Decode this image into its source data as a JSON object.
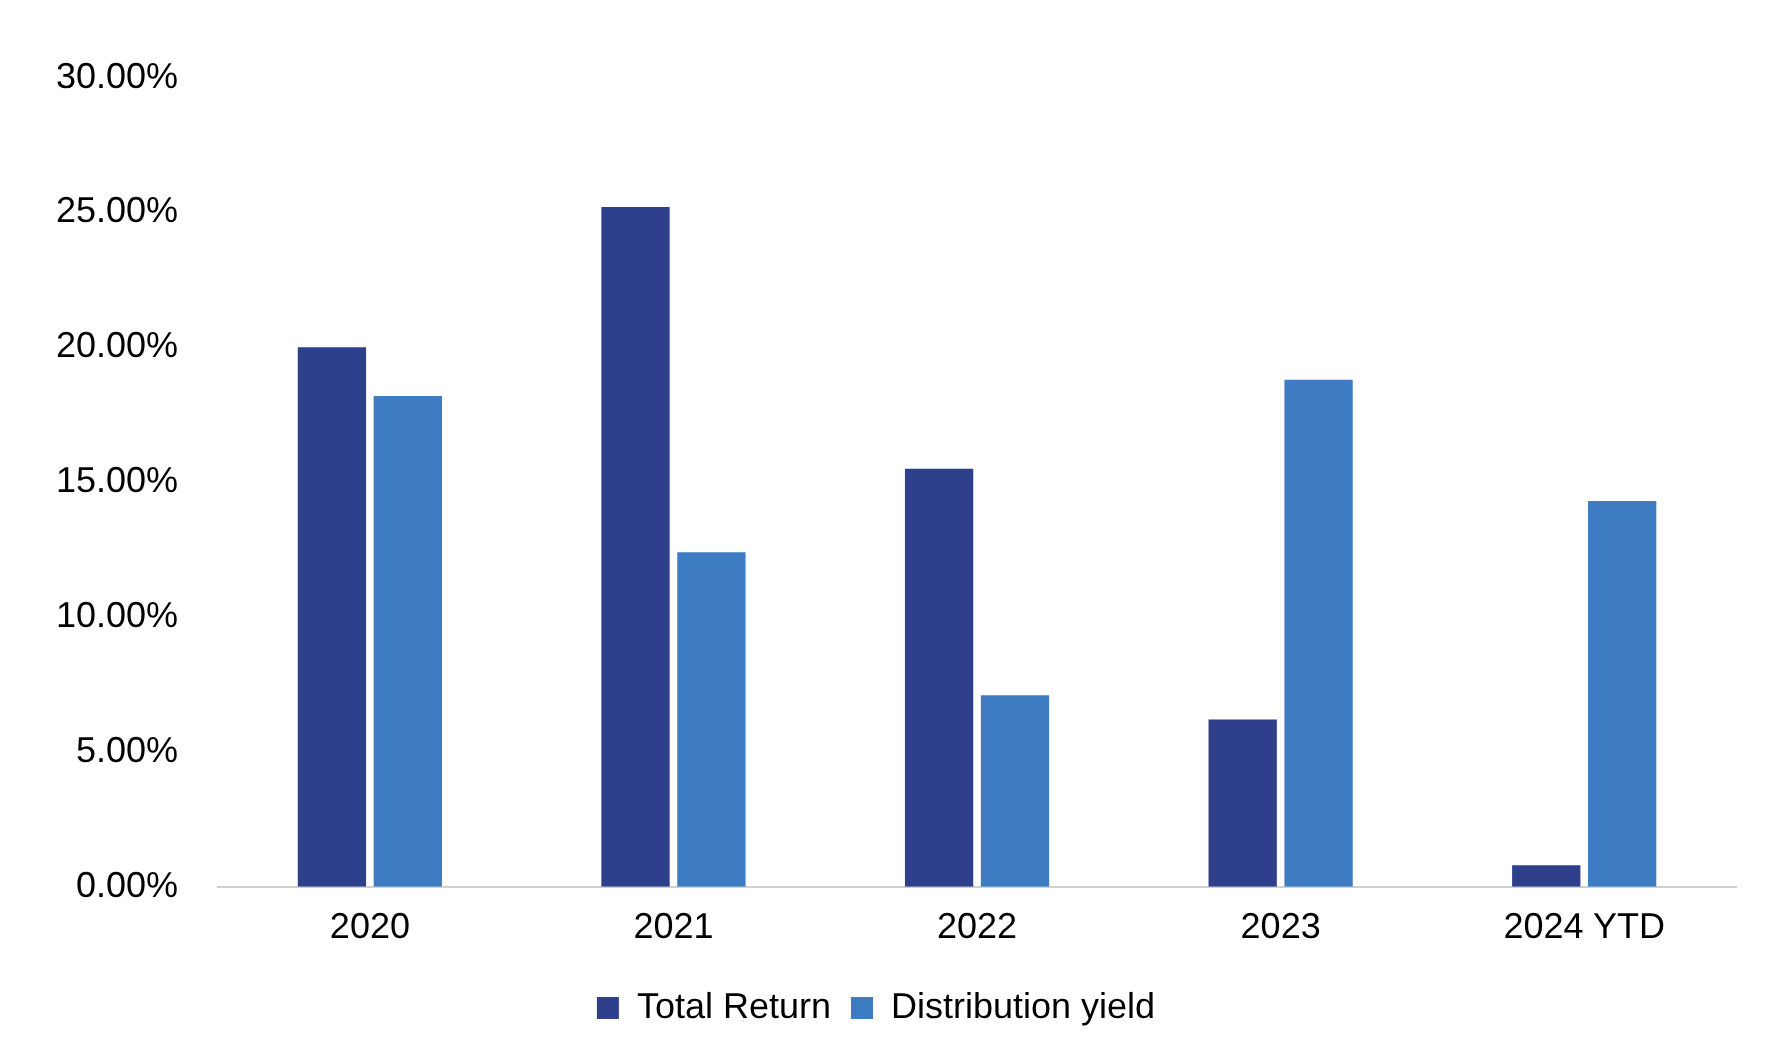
{
  "chart_data": {
    "type": "bar",
    "categories": [
      "2020",
      "2021",
      "2022",
      "2023",
      "2024 YTD"
    ],
    "series": [
      {
        "name": "Total Return",
        "color": "#2e3f8c",
        "values": [
          20.0,
          25.2,
          15.5,
          6.2,
          0.8
        ]
      },
      {
        "name": "Distribution yield",
        "color": "#3d7cc2",
        "values": [
          18.2,
          12.4,
          7.1,
          18.8,
          14.3
        ]
      }
    ],
    "ylim": [
      0,
      30
    ],
    "yticks": [
      {
        "value": 0,
        "label": "0.00%"
      },
      {
        "value": 5,
        "label": "5.00%"
      },
      {
        "value": 10,
        "label": "10.00%"
      },
      {
        "value": 15,
        "label": "15.00%"
      },
      {
        "value": 20,
        "label": "20.00%"
      },
      {
        "value": 25,
        "label": "25.00%"
      },
      {
        "value": 30,
        "label": "30.00%"
      }
    ],
    "grid": false,
    "legend": "bottom"
  }
}
